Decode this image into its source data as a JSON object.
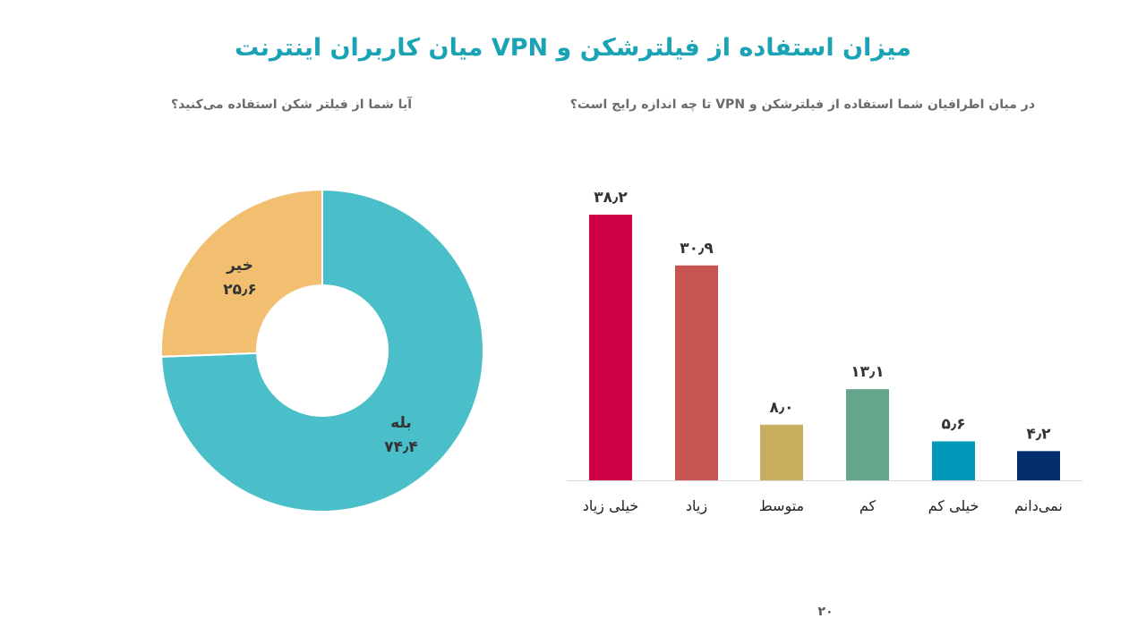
{
  "header": {
    "title": "میزان استفاده از فیلترشکن و VPN میان کاربران اینترنت"
  },
  "page": {
    "number": "۲۰"
  },
  "chart_data": [
    {
      "type": "pie",
      "title": "آیا شما از فیلتر شکن استفاده می‌کنید؟",
      "slices": [
        {
          "label": "بله",
          "value": 74.4,
          "display": "۷۴٫۴",
          "color": "#4abfca"
        },
        {
          "label": "خیر",
          "value": 25.6,
          "display": "۲۵٫۶",
          "color": "#f1bf6f"
        }
      ]
    },
    {
      "type": "bar",
      "title": "در میان اطرافیان شما استفاده از فیلترشکن و VPN تا چه اندازه رایج است؟",
      "ylim": [
        0,
        40
      ],
      "grid": false,
      "bars": [
        {
          "category": "خیلی زیاد",
          "value": 38.2,
          "display": "۳۸٫۲",
          "color": "#cc0042"
        },
        {
          "category": "زیاد",
          "value": 30.9,
          "display": "۳۰٫۹",
          "color": "#c85452"
        },
        {
          "category": "متوسط",
          "value": 8.0,
          "display": "۸٫۰",
          "color": "#c8ad5f"
        },
        {
          "category": "کم",
          "value": 13.1,
          "display": "۱۳٫۱",
          "color": "#63a68b"
        },
        {
          "category": "خیلی کم",
          "value": 5.6,
          "display": "۵٫۶",
          "color": "#0098b8"
        },
        {
          "category": "نمی‌دانم",
          "value": 4.2,
          "display": "۴٫۲",
          "color": "#032f6e"
        }
      ]
    }
  ]
}
